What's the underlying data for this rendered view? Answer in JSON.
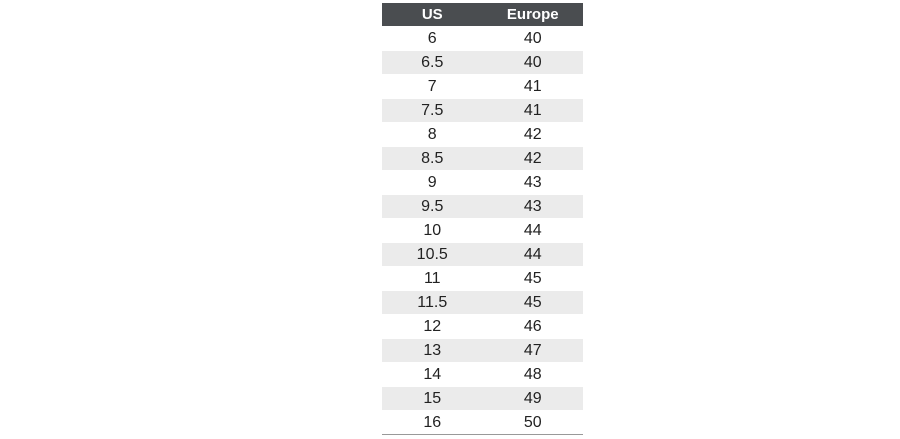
{
  "table": {
    "header": [
      "US",
      "Europe"
    ],
    "rows": [
      [
        "6",
        "40"
      ],
      [
        "6.5",
        "40"
      ],
      [
        "7",
        "41"
      ],
      [
        "7.5",
        "41"
      ],
      [
        "8",
        "42"
      ],
      [
        "8.5",
        "42"
      ],
      [
        "9",
        "43"
      ],
      [
        "9.5",
        "43"
      ],
      [
        "10",
        "44"
      ],
      [
        "10.5",
        "44"
      ],
      [
        "11",
        "45"
      ],
      [
        "11.5",
        "45"
      ],
      [
        "12",
        "46"
      ],
      [
        "13",
        "47"
      ],
      [
        "14",
        "48"
      ],
      [
        "15",
        "49"
      ],
      [
        "16",
        "50"
      ]
    ]
  }
}
